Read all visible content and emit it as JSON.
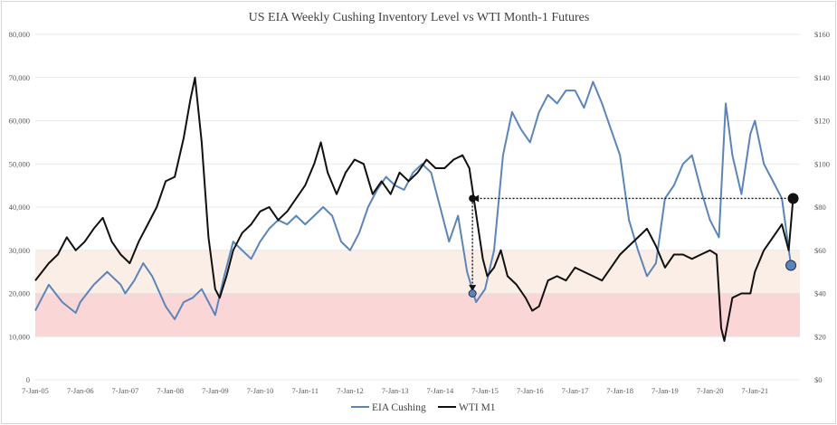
{
  "chart_data": {
    "type": "line",
    "title": "US EIA Weekly Cushing Inventory Level vs WTI Month-1 Futures",
    "x_tick_labels": [
      "7-Jan-05",
      "7-Jan-06",
      "7-Jan-07",
      "7-Jan-08",
      "7-Jan-09",
      "7-Jan-10",
      "7-Jan-11",
      "7-Jan-12",
      "7-Jan-13",
      "7-Jan-14",
      "7-Jan-15",
      "7-Jan-16",
      "7-Jan-17",
      "7-Jan-18",
      "7-Jan-19",
      "7-Jan-20",
      "7-Jan-21"
    ],
    "y_left": {
      "ylim": [
        0,
        80000
      ],
      "tick_values": [
        0,
        10000,
        20000,
        30000,
        40000,
        50000,
        60000,
        70000,
        80000
      ],
      "tick_labels": [
        "0",
        "10,000",
        "20,000",
        "30,000",
        "40,000",
        "50,000",
        "60,000",
        "70,000",
        "80,000"
      ]
    },
    "y_right": {
      "ylim": [
        0,
        160
      ],
      "tick_values": [
        0,
        20,
        40,
        60,
        80,
        100,
        120,
        140,
        160
      ],
      "tick_labels": [
        "$0",
        "$20",
        "$40",
        "$60",
        "$80",
        "$100",
        "$120",
        "$140",
        "$160"
      ]
    },
    "bands": [
      {
        "axis": "left",
        "from": 20000,
        "to": 30000,
        "color": "#fbeee6"
      },
      {
        "axis": "left",
        "from": 10000,
        "to": 20000,
        "color": "#fbd6d6"
      }
    ],
    "grid": true,
    "legend_position": "bottom-center",
    "series": [
      {
        "name": "EIA Cushing",
        "axis": "left",
        "color": "#5b85b9",
        "x": [
          2005.0,
          2005.3,
          2005.6,
          2005.9,
          2006.0,
          2006.3,
          2006.6,
          2006.9,
          2007.0,
          2007.2,
          2007.4,
          2007.6,
          2007.9,
          2008.1,
          2008.3,
          2008.5,
          2008.7,
          2008.9,
          2009.0,
          2009.2,
          2009.4,
          2009.6,
          2009.8,
          2010.0,
          2010.2,
          2010.4,
          2010.6,
          2010.8,
          2011.0,
          2011.2,
          2011.4,
          2011.6,
          2011.8,
          2012.0,
          2012.2,
          2012.4,
          2012.6,
          2012.8,
          2013.0,
          2013.2,
          2013.4,
          2013.6,
          2013.8,
          2014.0,
          2014.2,
          2014.4,
          2014.6,
          2014.8,
          2015.0,
          2015.2,
          2015.4,
          2015.6,
          2015.8,
          2016.0,
          2016.2,
          2016.4,
          2016.6,
          2016.8,
          2017.0,
          2017.2,
          2017.4,
          2017.6,
          2017.8,
          2018.0,
          2018.2,
          2018.4,
          2018.6,
          2018.8,
          2019.0,
          2019.2,
          2019.4,
          2019.6,
          2019.8,
          2020.0,
          2020.2,
          2020.35,
          2020.5,
          2020.7,
          2020.9,
          2021.0,
          2021.2,
          2021.4,
          2021.6,
          2021.8
        ],
        "values": [
          16000,
          22000,
          18000,
          15500,
          18000,
          22000,
          25000,
          22000,
          20000,
          23000,
          27000,
          24000,
          17000,
          14000,
          18000,
          19000,
          21000,
          17000,
          15000,
          24000,
          32000,
          30000,
          28000,
          32000,
          35000,
          37000,
          36000,
          38000,
          36000,
          38000,
          40000,
          38000,
          32000,
          30000,
          34000,
          40000,
          44000,
          47000,
          45000,
          44000,
          48000,
          50000,
          48000,
          40000,
          32000,
          38000,
          25000,
          18000,
          21000,
          30000,
          52000,
          62000,
          58000,
          55000,
          62000,
          66000,
          64000,
          67000,
          67000,
          63000,
          69000,
          64000,
          58000,
          52000,
          37000,
          30000,
          24000,
          27000,
          42000,
          45000,
          50000,
          52000,
          44000,
          37000,
          33000,
          64000,
          52000,
          43000,
          57000,
          60000,
          50000,
          46000,
          42000,
          26500
        ]
      },
      {
        "name": "WTI M1",
        "axis": "right",
        "color": "#111111",
        "x": [
          2005.0,
          2005.3,
          2005.5,
          2005.7,
          2005.9,
          2006.1,
          2006.3,
          2006.5,
          2006.7,
          2006.9,
          2007.1,
          2007.3,
          2007.5,
          2007.7,
          2007.9,
          2008.1,
          2008.3,
          2008.45,
          2008.55,
          2008.7,
          2008.85,
          2009.0,
          2009.1,
          2009.25,
          2009.4,
          2009.6,
          2009.8,
          2010.0,
          2010.2,
          2010.4,
          2010.6,
          2010.8,
          2011.0,
          2011.2,
          2011.35,
          2011.5,
          2011.7,
          2011.9,
          2012.1,
          2012.3,
          2012.5,
          2012.7,
          2012.9,
          2013.1,
          2013.3,
          2013.5,
          2013.7,
          2013.9,
          2014.1,
          2014.3,
          2014.5,
          2014.65,
          2014.75,
          2014.85,
          2014.95,
          2015.05,
          2015.2,
          2015.35,
          2015.5,
          2015.7,
          2015.9,
          2016.05,
          2016.2,
          2016.4,
          2016.6,
          2016.8,
          2017.0,
          2017.2,
          2017.4,
          2017.6,
          2017.8,
          2018.0,
          2018.2,
          2018.4,
          2018.6,
          2018.8,
          2019.0,
          2019.2,
          2019.4,
          2019.6,
          2019.8,
          2020.0,
          2020.15,
          2020.25,
          2020.32,
          2020.5,
          2020.7,
          2020.9,
          2021.0,
          2021.2,
          2021.4,
          2021.6,
          2021.75,
          2021.85
        ],
        "values": [
          46,
          54,
          58,
          66,
          60,
          64,
          70,
          75,
          64,
          58,
          54,
          64,
          72,
          80,
          92,
          94,
          112,
          130,
          140,
          110,
          66,
          42,
          38,
          48,
          60,
          68,
          72,
          78,
          80,
          74,
          78,
          84,
          90,
          100,
          110,
          96,
          86,
          96,
          102,
          100,
          86,
          92,
          86,
          96,
          92,
          96,
          102,
          98,
          98,
          102,
          104,
          98,
          84,
          70,
          56,
          48,
          52,
          60,
          48,
          44,
          38,
          32,
          34,
          46,
          48,
          46,
          52,
          50,
          48,
          46,
          52,
          58,
          62,
          66,
          70,
          62,
          52,
          58,
          58,
          56,
          58,
          60,
          58,
          24,
          18,
          38,
          40,
          40,
          50,
          60,
          66,
          72,
          60,
          84
        ]
      }
    ],
    "annotations": [
      {
        "type": "horizontal-dotted-arrow",
        "axis": "right",
        "y": 84,
        "x_from": 2021.85,
        "x_to": 2014.72
      },
      {
        "type": "vertical-dotted-arrow",
        "x": 2014.72,
        "y_from_axis": "right",
        "y_from": 84,
        "y_to_axis": "left",
        "y_to": 20500
      },
      {
        "type": "marker",
        "series": "WTI M1",
        "x": 2014.72,
        "y": 84,
        "color": "#111111"
      },
      {
        "type": "marker",
        "series": "EIA Cushing",
        "x": 2014.72,
        "y": 20000,
        "color": "#5b85b9"
      },
      {
        "type": "marker",
        "series": "WTI M1",
        "x": 2021.85,
        "y": 84,
        "color": "#111111"
      },
      {
        "type": "marker",
        "series": "EIA Cushing",
        "x": 2021.8,
        "y": 26500,
        "color": "#5b85b9"
      }
    ]
  }
}
